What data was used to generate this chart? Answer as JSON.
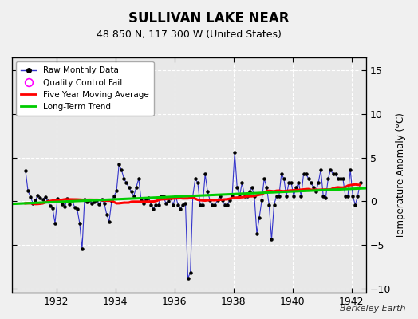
{
  "title": "SULLIVAN LAKE NEAR",
  "subtitle": "48.850 N, 117.300 W (United States)",
  "ylabel": "Temperature Anomaly (°C)",
  "watermark": "Berkeley Earth",
  "xlim": [
    1930.5,
    1942.5
  ],
  "ylim": [
    -10.5,
    16.5
  ],
  "yticks": [
    -10,
    -5,
    0,
    5,
    10,
    15
  ],
  "xticks": [
    1932,
    1934,
    1936,
    1938,
    1940,
    1942
  ],
  "bg_color": "#e8e8e8",
  "raw_color": "#3333cc",
  "raw_marker_color": "#000000",
  "moving_avg_color": "#ff0000",
  "trend_color": "#00cc00",
  "trend_x": [
    1930.5,
    1942.5
  ],
  "trend_y": [
    -0.3,
    1.5
  ],
  "raw_data_years": [
    1930.958,
    1931.042,
    1931.125,
    1931.208,
    1931.292,
    1931.375,
    1931.458,
    1931.542,
    1931.625,
    1931.708,
    1931.792,
    1931.875,
    1931.958,
    1932.042,
    1932.125,
    1932.208,
    1932.292,
    1932.375,
    1932.458,
    1932.542,
    1932.625,
    1932.708,
    1932.792,
    1932.875,
    1932.958,
    1933.042,
    1933.125,
    1933.208,
    1933.292,
    1933.375,
    1933.458,
    1933.542,
    1933.625,
    1933.708,
    1933.792,
    1933.875,
    1933.958,
    1934.042,
    1934.125,
    1934.208,
    1934.292,
    1934.375,
    1934.458,
    1934.542,
    1934.625,
    1934.708,
    1934.792,
    1934.875,
    1934.958,
    1935.042,
    1935.125,
    1935.208,
    1935.292,
    1935.375,
    1935.458,
    1935.542,
    1935.625,
    1935.708,
    1935.792,
    1935.875,
    1935.958,
    1936.042,
    1936.125,
    1936.208,
    1936.292,
    1936.375,
    1936.458,
    1936.542,
    1936.625,
    1936.708,
    1936.792,
    1936.875,
    1936.958,
    1937.042,
    1937.125,
    1937.208,
    1937.292,
    1937.375,
    1937.458,
    1937.542,
    1937.625,
    1937.708,
    1937.792,
    1937.875,
    1937.958,
    1938.042,
    1938.125,
    1938.208,
    1938.292,
    1938.375,
    1938.458,
    1938.542,
    1938.625,
    1938.708,
    1938.792,
    1938.875,
    1938.958,
    1939.042,
    1939.125,
    1939.208,
    1939.292,
    1939.375,
    1939.458,
    1939.542,
    1939.625,
    1939.708,
    1939.792,
    1939.875,
    1939.958,
    1940.042,
    1940.125,
    1940.208,
    1940.292,
    1940.375,
    1940.458,
    1940.542,
    1940.625,
    1940.708,
    1940.792,
    1940.875,
    1940.958,
    1941.042,
    1941.125,
    1941.208,
    1941.292,
    1941.375,
    1941.458,
    1941.542,
    1941.625,
    1941.708,
    1941.792,
    1941.875,
    1941.958,
    1942.042,
    1942.125,
    1942.208,
    1942.292
  ],
  "raw_data_values": [
    3.5,
    1.2,
    0.5,
    -0.2,
    0.1,
    0.7,
    0.4,
    0.2,
    0.5,
    0.0,
    -0.5,
    -0.8,
    -2.5,
    0.3,
    0.1,
    -0.3,
    -0.6,
    0.3,
    -0.3,
    0.1,
    -0.7,
    -0.9,
    -2.5,
    -5.5,
    0.2,
    -0.1,
    0.1,
    -0.2,
    -0.1,
    0.1,
    -0.3,
    0.2,
    -0.2,
    -1.5,
    -2.3,
    0.0,
    0.6,
    1.2,
    4.2,
    3.6,
    2.6,
    2.1,
    1.6,
    1.1,
    0.6,
    1.6,
    2.6,
    0.1,
    -0.2,
    0.2,
    0.4,
    -0.4,
    -0.9,
    -0.4,
    -0.4,
    0.6,
    0.6,
    -0.2,
    0.0,
    0.4,
    -0.4,
    0.6,
    -0.4,
    -0.9,
    -0.4,
    -0.2,
    -8.8,
    -8.2,
    0.6,
    2.6,
    2.1,
    -0.4,
    -0.4,
    3.1,
    1.1,
    0.1,
    -0.4,
    -0.4,
    0.1,
    0.6,
    0.1,
    -0.4,
    -0.4,
    0.1,
    0.6,
    5.6,
    1.6,
    0.6,
    2.1,
    0.6,
    0.6,
    1.1,
    1.6,
    0.6,
    -3.7,
    -1.9,
    0.1,
    2.6,
    1.6,
    -0.4,
    -4.4,
    -0.4,
    0.6,
    0.6,
    3.1,
    2.6,
    0.6,
    2.1,
    2.1,
    0.6,
    1.6,
    2.1,
    0.6,
    3.1,
    3.1,
    2.6,
    2.1,
    1.6,
    1.1,
    2.1,
    3.6,
    0.6,
    0.4,
    2.6,
    3.6,
    3.1,
    3.1,
    2.6,
    2.6,
    2.6,
    0.6,
    0.6,
    3.6,
    0.6,
    -0.4,
    0.6,
    2.1
  ]
}
